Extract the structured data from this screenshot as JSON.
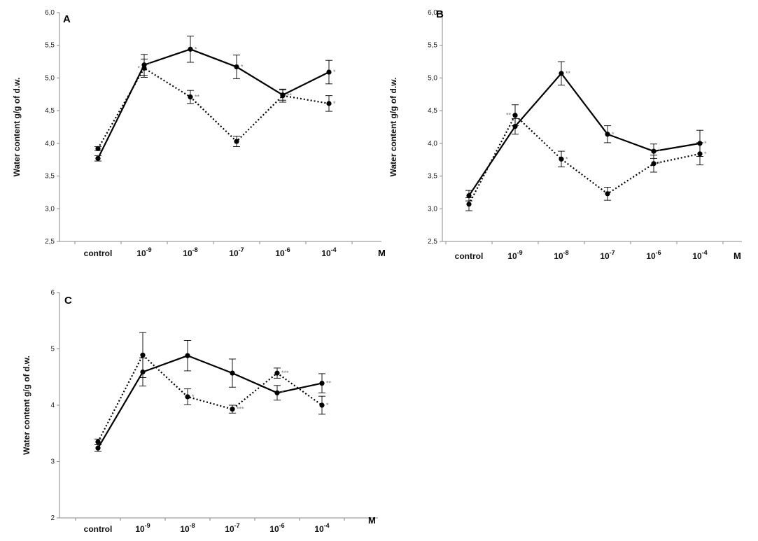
{
  "chart_data": [
    {
      "type": "line",
      "panel_label": "A",
      "ylabel": "Water content g/g  of d.w.",
      "unit_label": "M",
      "ylim": [
        2.5,
        6.0
      ],
      "yticks": [
        2.5,
        3.0,
        3.5,
        4.0,
        4.5,
        5.0,
        5.5,
        6.0
      ],
      "ytick_labels": [
        "2,5",
        "3,0",
        "3,5",
        "4,0",
        "4,5",
        "5,0",
        "5,5",
        "6,0"
      ],
      "categories": [
        {
          "base": "control",
          "exp": ""
        },
        {
          "base": "10",
          "exp": "-9"
        },
        {
          "base": "10",
          "exp": "-8"
        },
        {
          "base": "10",
          "exp": "-7"
        },
        {
          "base": "10",
          "exp": "-6"
        },
        {
          "base": "10",
          "exp": "-4"
        }
      ],
      "series": [
        {
          "name": "solid",
          "style": "solid",
          "values": [
            3.77,
            5.2,
            5.44,
            5.17,
            4.74,
            5.09
          ],
          "errors": [
            0.04,
            0.16,
            0.2,
            0.18,
            0.08,
            0.18
          ],
          "sig": [
            "",
            "*",
            "*",
            "*",
            "",
            "*"
          ]
        },
        {
          "name": "dotted",
          "style": "dotted",
          "values": [
            3.92,
            5.15,
            4.71,
            4.03,
            4.73,
            4.61
          ],
          "errors": [
            0.03,
            0.14,
            0.1,
            0.08,
            0.1,
            0.12
          ],
          "sig": [
            "",
            "*",
            "**",
            "",
            "**",
            "*"
          ]
        }
      ]
    },
    {
      "type": "line",
      "panel_label": "B",
      "ylabel": "Water content g/g  of d.w.",
      "unit_label": "M",
      "ylim": [
        2.5,
        6.0
      ],
      "yticks": [
        2.5,
        3.0,
        3.5,
        4.0,
        4.5,
        5.0,
        5.5,
        6.0
      ],
      "ytick_labels": [
        "2,5",
        "3,0",
        "3,5",
        "4,0",
        "4,5",
        "5,0",
        "5,5",
        "6,0"
      ],
      "categories": [
        {
          "base": "control",
          "exp": ""
        },
        {
          "base": "10",
          "exp": "-9"
        },
        {
          "base": "10",
          "exp": "-8"
        },
        {
          "base": "10",
          "exp": "-7"
        },
        {
          "base": "10",
          "exp": "-6"
        },
        {
          "base": "10",
          "exp": "-4"
        }
      ],
      "series": [
        {
          "name": "solid",
          "style": "solid",
          "values": [
            3.2,
            4.26,
            5.07,
            4.14,
            3.88,
            4.0
          ],
          "errors": [
            0.08,
            0.12,
            0.18,
            0.13,
            0.11,
            0.2
          ],
          "sig": [
            "",
            "",
            "**",
            "*",
            "*",
            "*"
          ]
        },
        {
          "name": "dotted",
          "style": "dotted",
          "values": [
            3.07,
            4.43,
            3.76,
            3.23,
            3.69,
            3.84
          ],
          "errors": [
            0.1,
            0.16,
            0.12,
            0.1,
            0.13,
            0.17
          ],
          "sig": [
            "",
            "**",
            "*",
            "",
            "*",
            "*"
          ]
        }
      ]
    },
    {
      "type": "line",
      "panel_label": "C",
      "ylabel": "Water content g/g  of d.w.",
      "unit_label": "M",
      "ylim": [
        2,
        6
      ],
      "yticks": [
        2,
        3,
        4,
        5,
        6
      ],
      "ytick_labels": [
        "2",
        "3",
        "4",
        "5",
        "6"
      ],
      "categories": [
        {
          "base": "control",
          "exp": ""
        },
        {
          "base": "10",
          "exp": "-9"
        },
        {
          "base": "10",
          "exp": "-8"
        },
        {
          "base": "10",
          "exp": "-7"
        },
        {
          "base": "10",
          "exp": "-6"
        },
        {
          "base": "10",
          "exp": "-4"
        }
      ],
      "series": [
        {
          "name": "solid",
          "style": "solid",
          "values": [
            3.24,
            4.59,
            4.88,
            4.57,
            4.22,
            4.39
          ],
          "errors": [
            0.06,
            0.25,
            0.27,
            0.25,
            0.13,
            0.17
          ],
          "sig": [
            "",
            "",
            "",
            "",
            "*",
            "**"
          ]
        },
        {
          "name": "dotted",
          "style": "dotted",
          "values": [
            3.35,
            4.89,
            4.15,
            3.93,
            4.57,
            4.0
          ],
          "errors": [
            0.05,
            0.4,
            0.14,
            0.07,
            0.09,
            0.16
          ],
          "sig": [
            "",
            "",
            "*",
            "***",
            "***",
            "*"
          ]
        }
      ]
    }
  ]
}
